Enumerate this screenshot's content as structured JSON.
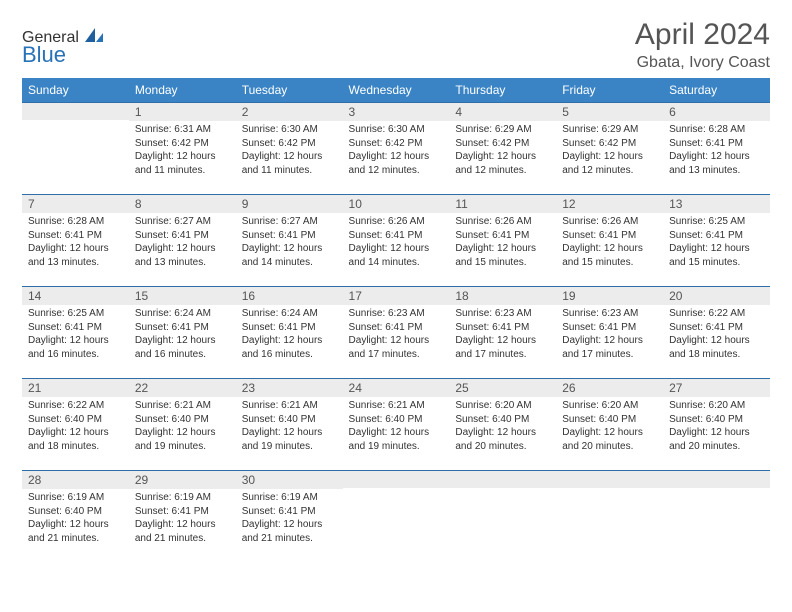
{
  "logo": {
    "text1": "General",
    "text2": "Blue"
  },
  "title": "April 2024",
  "location": "Gbata, Ivory Coast",
  "colors": {
    "header_bg": "#3a84c6",
    "header_text": "#ffffff",
    "band_bg": "#ececec",
    "band_border": "#2f6ea8",
    "body_text": "#333333",
    "logo_gray": "#6b6b6b",
    "logo_blue": "#2872b8"
  },
  "weekdays": [
    "Sunday",
    "Monday",
    "Tuesday",
    "Wednesday",
    "Thursday",
    "Friday",
    "Saturday"
  ],
  "weeks": [
    [
      null,
      {
        "n": "1",
        "sr": "6:31 AM",
        "ss": "6:42 PM",
        "dl": "12 hours and 11 minutes."
      },
      {
        "n": "2",
        "sr": "6:30 AM",
        "ss": "6:42 PM",
        "dl": "12 hours and 11 minutes."
      },
      {
        "n": "3",
        "sr": "6:30 AM",
        "ss": "6:42 PM",
        "dl": "12 hours and 12 minutes."
      },
      {
        "n": "4",
        "sr": "6:29 AM",
        "ss": "6:42 PM",
        "dl": "12 hours and 12 minutes."
      },
      {
        "n": "5",
        "sr": "6:29 AM",
        "ss": "6:42 PM",
        "dl": "12 hours and 12 minutes."
      },
      {
        "n": "6",
        "sr": "6:28 AM",
        "ss": "6:41 PM",
        "dl": "12 hours and 13 minutes."
      }
    ],
    [
      {
        "n": "7",
        "sr": "6:28 AM",
        "ss": "6:41 PM",
        "dl": "12 hours and 13 minutes."
      },
      {
        "n": "8",
        "sr": "6:27 AM",
        "ss": "6:41 PM",
        "dl": "12 hours and 13 minutes."
      },
      {
        "n": "9",
        "sr": "6:27 AM",
        "ss": "6:41 PM",
        "dl": "12 hours and 14 minutes."
      },
      {
        "n": "10",
        "sr": "6:26 AM",
        "ss": "6:41 PM",
        "dl": "12 hours and 14 minutes."
      },
      {
        "n": "11",
        "sr": "6:26 AM",
        "ss": "6:41 PM",
        "dl": "12 hours and 15 minutes."
      },
      {
        "n": "12",
        "sr": "6:26 AM",
        "ss": "6:41 PM",
        "dl": "12 hours and 15 minutes."
      },
      {
        "n": "13",
        "sr": "6:25 AM",
        "ss": "6:41 PM",
        "dl": "12 hours and 15 minutes."
      }
    ],
    [
      {
        "n": "14",
        "sr": "6:25 AM",
        "ss": "6:41 PM",
        "dl": "12 hours and 16 minutes."
      },
      {
        "n": "15",
        "sr": "6:24 AM",
        "ss": "6:41 PM",
        "dl": "12 hours and 16 minutes."
      },
      {
        "n": "16",
        "sr": "6:24 AM",
        "ss": "6:41 PM",
        "dl": "12 hours and 16 minutes."
      },
      {
        "n": "17",
        "sr": "6:23 AM",
        "ss": "6:41 PM",
        "dl": "12 hours and 17 minutes."
      },
      {
        "n": "18",
        "sr": "6:23 AM",
        "ss": "6:41 PM",
        "dl": "12 hours and 17 minutes."
      },
      {
        "n": "19",
        "sr": "6:23 AM",
        "ss": "6:41 PM",
        "dl": "12 hours and 17 minutes."
      },
      {
        "n": "20",
        "sr": "6:22 AM",
        "ss": "6:41 PM",
        "dl": "12 hours and 18 minutes."
      }
    ],
    [
      {
        "n": "21",
        "sr": "6:22 AM",
        "ss": "6:40 PM",
        "dl": "12 hours and 18 minutes."
      },
      {
        "n": "22",
        "sr": "6:21 AM",
        "ss": "6:40 PM",
        "dl": "12 hours and 19 minutes."
      },
      {
        "n": "23",
        "sr": "6:21 AM",
        "ss": "6:40 PM",
        "dl": "12 hours and 19 minutes."
      },
      {
        "n": "24",
        "sr": "6:21 AM",
        "ss": "6:40 PM",
        "dl": "12 hours and 19 minutes."
      },
      {
        "n": "25",
        "sr": "6:20 AM",
        "ss": "6:40 PM",
        "dl": "12 hours and 20 minutes."
      },
      {
        "n": "26",
        "sr": "6:20 AM",
        "ss": "6:40 PM",
        "dl": "12 hours and 20 minutes."
      },
      {
        "n": "27",
        "sr": "6:20 AM",
        "ss": "6:40 PM",
        "dl": "12 hours and 20 minutes."
      }
    ],
    [
      {
        "n": "28",
        "sr": "6:19 AM",
        "ss": "6:40 PM",
        "dl": "12 hours and 21 minutes."
      },
      {
        "n": "29",
        "sr": "6:19 AM",
        "ss": "6:41 PM",
        "dl": "12 hours and 21 minutes."
      },
      {
        "n": "30",
        "sr": "6:19 AM",
        "ss": "6:41 PM",
        "dl": "12 hours and 21 minutes."
      },
      null,
      null,
      null,
      null
    ]
  ],
  "labels": {
    "sunrise": "Sunrise: ",
    "sunset": "Sunset: ",
    "daylight": "Daylight: "
  }
}
